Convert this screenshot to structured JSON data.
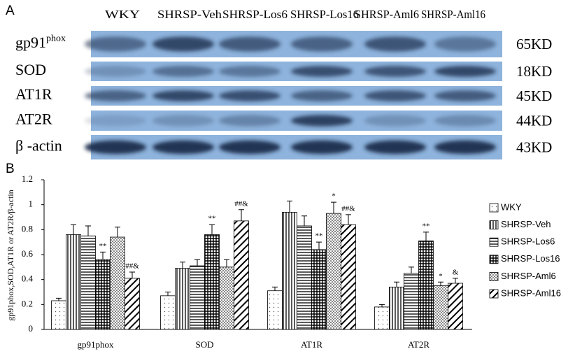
{
  "panel_a": {
    "label": "A",
    "columns": [
      "WKY",
      "SHRSP-Veh",
      "SHRSP-Los6",
      "SHRSP-Los16",
      "SHRSP-Aml6",
      "SHRSP-Aml16"
    ],
    "rows": [
      {
        "label": "gp91",
        "label_sup": "phox",
        "size": "65KD"
      },
      {
        "label": "SOD",
        "size": "18KD"
      },
      {
        "label": "AT1R",
        "size": "45KD"
      },
      {
        "label": "AT2R",
        "size": "44KD"
      },
      {
        "label": "β -actin",
        "size": "43KD"
      }
    ]
  },
  "chart_data": {
    "type": "bar",
    "panel_label": "B",
    "y_label": "gp91phox,SOD,AT1R or AT2R/β-actin",
    "categories": [
      "gp91phox",
      "SOD",
      "AT1R",
      "AT2R"
    ],
    "ylim": [
      0,
      1.2
    ],
    "yticks": [
      0,
      0.2,
      0.4,
      0.6,
      0.8,
      1,
      1.2
    ],
    "series": [
      {
        "name": "WKY",
        "color": "#000000",
        "values": [
          0.23,
          0.27,
          0.31,
          0.18
        ],
        "errors": [
          0.02,
          0.03,
          0.03,
          0.02
        ],
        "annotations": [
          null,
          null,
          null,
          null
        ]
      },
      {
        "name": "SHRSP-Veh",
        "color": "#000000",
        "values": [
          0.76,
          0.49,
          0.94,
          0.34
        ],
        "errors": [
          0.08,
          0.05,
          0.09,
          0.04
        ],
        "annotations": [
          null,
          null,
          null,
          null
        ]
      },
      {
        "name": "SHRSP-Los6",
        "color": "#000000",
        "values": [
          0.75,
          0.51,
          0.83,
          0.45
        ],
        "errors": [
          0.08,
          0.05,
          0.08,
          0.05
        ],
        "annotations": [
          null,
          null,
          null,
          null
        ]
      },
      {
        "name": "SHRSP-Los16",
        "color": "#000000",
        "values": [
          0.56,
          0.76,
          0.64,
          0.71
        ],
        "errors": [
          0.06,
          0.08,
          0.06,
          0.07
        ],
        "annotations": [
          "**",
          "**",
          "**",
          "**"
        ]
      },
      {
        "name": "SHRSP-Aml6",
        "color": "#000000",
        "values": [
          0.74,
          0.5,
          0.93,
          0.35
        ],
        "errors": [
          0.08,
          0.06,
          0.09,
          0.03
        ],
        "annotations": [
          null,
          null,
          "*",
          "*"
        ]
      },
      {
        "name": "SHRSP-Aml16",
        "color": "#000000",
        "values": [
          0.41,
          0.87,
          0.84,
          0.37
        ],
        "errors": [
          0.05,
          0.09,
          0.08,
          0.04
        ],
        "annotations": [
          "##&",
          "##&",
          "##&",
          "&"
        ]
      }
    ]
  }
}
